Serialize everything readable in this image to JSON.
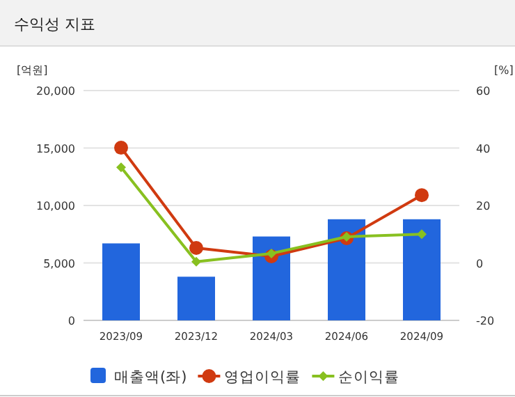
{
  "chart_data": {
    "type": "bar",
    "title": "수익성 지표",
    "categories": [
      "2023/09",
      "2023/12",
      "2024/03",
      "2024/06",
      "2024/09"
    ],
    "series": [
      {
        "name": "매출액(좌)",
        "color": "#2266dd",
        "values": [
          6700,
          3800,
          7300,
          8800,
          8800
        ]
      },
      {
        "name": "영업이익률",
        "type": "line",
        "axis": "y2",
        "marker": "circle",
        "color": "#d03a10",
        "values": [
          40.1,
          5.2,
          2.3,
          8.6,
          23.6
        ]
      },
      {
        "name": "순이익률",
        "type": "line",
        "axis": "y2",
        "marker": "diamond",
        "color": "#88c020",
        "values": [
          33.3,
          0.4,
          3.3,
          9.1,
          10.0
        ]
      }
    ],
    "ylabel": "[억원]",
    "y2label": "[%]",
    "ylim": [
      0,
      20000
    ],
    "yticks": [
      {
        "value": 0,
        "label": "0"
      },
      {
        "value": 5000,
        "label": "5,000"
      },
      {
        "value": 10000,
        "label": "10,000"
      },
      {
        "value": 15000,
        "label": "15,000"
      },
      {
        "value": 20000,
        "label": "20,000"
      }
    ],
    "y2lim": [
      -20,
      60
    ],
    "y2ticks": [
      -20,
      0,
      20,
      40,
      60
    ],
    "grid": "y",
    "legend": "bottom"
  }
}
